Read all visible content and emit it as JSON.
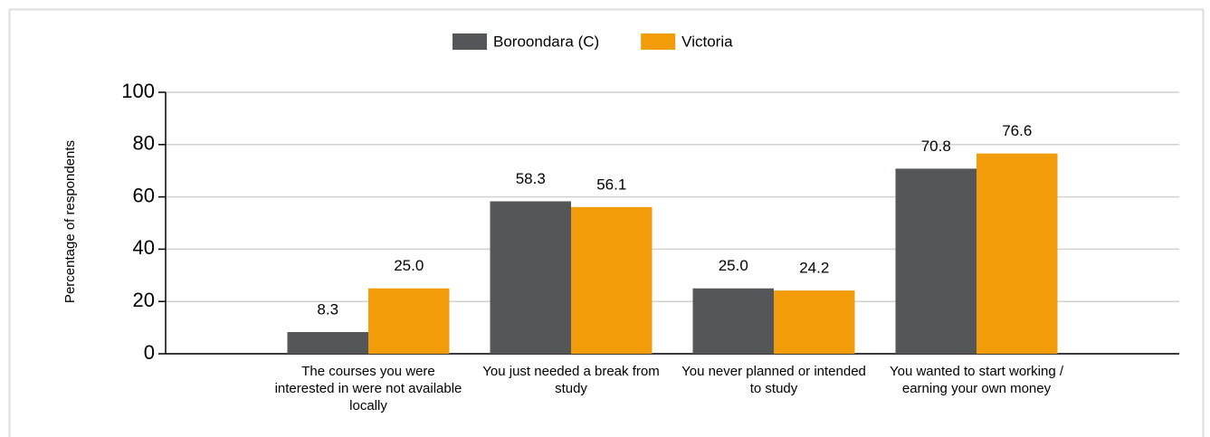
{
  "chart_data": {
    "type": "bar",
    "y_label": "Percentage of respondents",
    "categories": [
      "The courses you were interested in were not available locally",
      "You just needed a break from study",
      "You never planned or intended to study",
      "You wanted to start working / earning your own money"
    ],
    "series": [
      {
        "name": "Boroondara (C)",
        "color": "#54575a",
        "values": [
          8.3,
          58.3,
          25.0,
          70.8
        ],
        "value_labels": [
          "8.3",
          "58.3",
          "25.0",
          "70.8"
        ]
      },
      {
        "name": "Victoria",
        "color": "#f39c0a",
        "values": [
          25.0,
          56.1,
          24.2,
          76.6
        ],
        "value_labels": [
          "25.0",
          "56.1",
          "24.2",
          "76.6"
        ]
      }
    ],
    "ylim": [
      0,
      100
    ],
    "yticks": [
      0,
      20,
      40,
      60,
      80,
      100
    ],
    "grid": true,
    "legend": "top"
  }
}
